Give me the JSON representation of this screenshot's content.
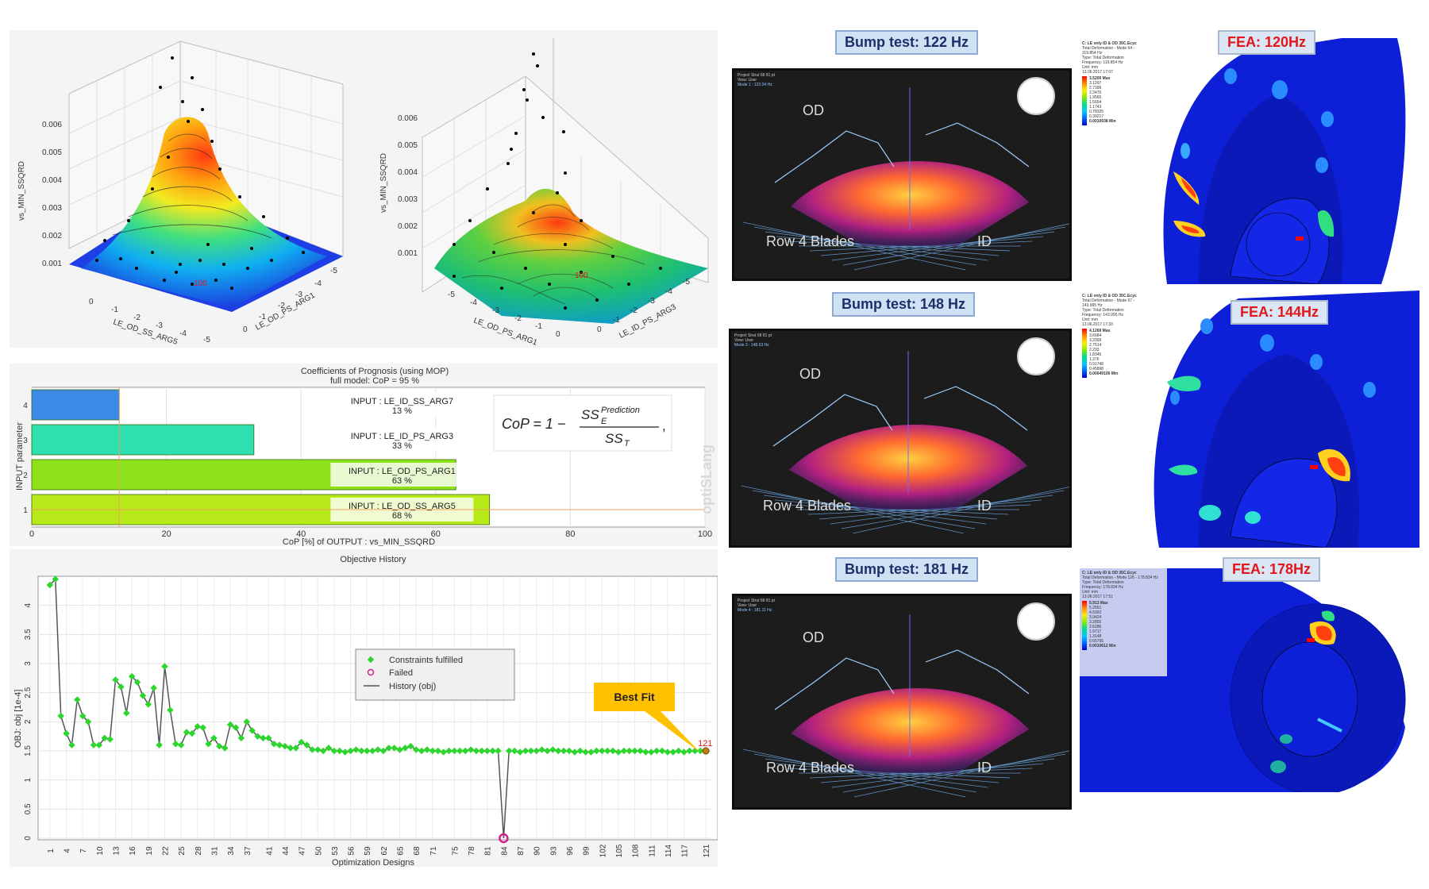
{
  "surface_plots": {
    "left": {
      "zlabel": "vs_MIN_SSQRD",
      "xlabel": "LE_OD_SS_ARG5",
      "ylabel": "LE_OD_PS_ARG1",
      "zticks": [
        "0.006",
        "0.005",
        "0.004",
        "0.003",
        "0.002",
        "0.001"
      ],
      "xticks": [
        "0",
        "-1",
        "-2",
        "-3",
        "-4",
        "-5"
      ],
      "yticks": [
        "0",
        "-1",
        "-2",
        "-3",
        "-4",
        "-5"
      ],
      "marker": "100"
    },
    "right": {
      "zlabel": "vs_MIN_SSQRD",
      "xlabel": "LE_OD_PS_ARG1",
      "ylabel": "LE_ID_PS_ARG3",
      "zticks": [
        "0.006",
        "0.005",
        "0.004",
        "0.003",
        "0.002",
        "0.001"
      ],
      "xticks": [
        "-5",
        "-4",
        "-3",
        "-2",
        "-1",
        "0"
      ],
      "yticks": [
        "0",
        "-1",
        "-2",
        "-3",
        "-4",
        "-5"
      ],
      "marker": "100"
    }
  },
  "cop_chart": {
    "title": "Coefficients of Prognosis (using MOP)",
    "subtitle": "full model: CoP = 95 %",
    "ylabel": "INPUT parameter",
    "xlabel": "CoP [%] of OUTPUT : vs_MIN_SSQRD",
    "watermark": "optiSLang",
    "formula": {
      "lhs": "CoP = 1 −",
      "num": "SS",
      "num_sub": "E",
      "num_sup": "Prediction",
      "den": "SS",
      "den_sub": "T",
      "tail": ","
    }
  },
  "history_chart": {
    "title": "Objective History",
    "ylabel": "OBJ: obj [1e-4]",
    "xlabel": "Optimization Designs",
    "legend": {
      "fulfilled": "Constraints fulfilled",
      "failed": "Failed",
      "history": "History (obj)"
    },
    "callout": "Best Fit",
    "best_label": "121",
    "colors": {
      "fulfilled": "#2dd62d",
      "failed": "#d41f8f",
      "line": "#555555",
      "callout": "#ffc000"
    }
  },
  "chart_data": [
    {
      "type": "bar",
      "title": "Coefficients of Prognosis (using MOP)",
      "subtitle": "full model: CoP = 95 %",
      "xlabel": "CoP [%] of OUTPUT : vs_MIN_SSQRD",
      "ylabel": "INPUT parameter",
      "orientation": "horizontal",
      "xlim": [
        0,
        100
      ],
      "xticks": [
        0,
        20,
        40,
        60,
        80,
        100
      ],
      "categories": [
        "4",
        "3",
        "2",
        "1"
      ],
      "labels": [
        "INPUT : LE_ID_SS_ARG7",
        "INPUT : LE_ID_PS_ARG3",
        "INPUT : LE_OD_PS_ARG1",
        "INPUT : LE_OD_SS_ARG5"
      ],
      "values": [
        13,
        33,
        63,
        68
      ],
      "value_labels": [
        "13 %",
        "33 %",
        "63 %",
        "68 %"
      ],
      "colors": [
        "#3a8ae6",
        "#2ee0b0",
        "#8ee21a",
        "#b8ea1a"
      ]
    },
    {
      "type": "scatter",
      "title": "Objective History",
      "xlabel": "Optimization Designs",
      "ylabel": "OBJ: obj [1e-4]",
      "xlim": [
        0,
        122
      ],
      "ylim": [
        0,
        4.5
      ],
      "xticks": [
        1,
        4,
        7,
        10,
        13,
        16,
        19,
        22,
        25,
        28,
        31,
        34,
        37,
        41,
        44,
        47,
        50,
        53,
        56,
        59,
        62,
        65,
        68,
        71,
        75,
        78,
        81,
        84,
        87,
        90,
        93,
        96,
        99,
        102,
        105,
        108,
        111,
        114,
        117,
        121
      ],
      "yticks": [
        0,
        0.5,
        1,
        1.5,
        2,
        2.5,
        3,
        3.5,
        4
      ],
      "legend": "top-center",
      "grid": true,
      "series": [
        {
          "name": "History (obj)",
          "x": [
            1,
            2,
            3,
            4,
            5,
            6,
            7,
            8,
            9,
            10,
            11,
            12,
            13,
            14,
            15,
            16,
            17,
            18,
            19,
            20,
            21,
            22,
            23,
            24,
            25,
            26,
            27,
            28,
            29,
            30,
            31,
            32,
            33,
            34,
            35,
            36,
            37,
            38,
            39,
            40,
            41,
            42,
            43,
            44,
            45,
            46,
            47,
            48,
            49,
            50,
            51,
            52,
            53,
            54,
            55,
            56,
            57,
            58,
            59,
            60,
            61,
            62,
            63,
            64,
            65,
            66,
            67,
            68,
            69,
            70,
            71,
            72,
            73,
            74,
            75,
            76,
            77,
            78,
            79,
            80,
            81,
            82,
            83,
            84,
            85,
            86,
            87,
            88,
            89,
            90,
            91,
            92,
            93,
            94,
            95,
            96,
            97,
            98,
            99,
            100,
            101,
            102,
            103,
            104,
            105,
            106,
            107,
            108,
            109,
            110,
            111,
            112,
            113,
            114,
            115,
            116,
            117,
            118,
            119,
            120,
            121
          ],
          "y": [
            4.35,
            4.45,
            2.1,
            1.8,
            1.6,
            2.38,
            2.1,
            2.0,
            1.6,
            1.6,
            1.72,
            1.7,
            2.72,
            2.6,
            2.15,
            2.78,
            2.68,
            2.45,
            2.3,
            2.58,
            1.6,
            2.95,
            2.2,
            1.62,
            1.6,
            1.82,
            1.8,
            1.92,
            1.9,
            1.62,
            1.72,
            1.58,
            1.55,
            1.95,
            1.9,
            1.72,
            2.0,
            1.85,
            1.75,
            1.72,
            1.72,
            1.62,
            1.6,
            1.58,
            1.55,
            1.55,
            1.65,
            1.6,
            1.52,
            1.52,
            1.5,
            1.55,
            1.5,
            1.5,
            1.48,
            1.5,
            1.52,
            1.5,
            1.5,
            1.5,
            1.52,
            1.5,
            1.55,
            1.55,
            1.52,
            1.55,
            1.58,
            1.52,
            1.5,
            1.52,
            1.5,
            1.5,
            1.48,
            1.5,
            1.5,
            1.5,
            1.5,
            1.52,
            1.5,
            1.5,
            1.5,
            1.5,
            1.5,
            0.0,
            1.5,
            1.5,
            1.48,
            1.5,
            1.5,
            1.5,
            1.52,
            1.5,
            1.52,
            1.5,
            1.5,
            1.5,
            1.48,
            1.5,
            1.48,
            1.48,
            1.5,
            1.5,
            1.5,
            1.5,
            1.48,
            1.5,
            1.5,
            1.5,
            1.5,
            1.48,
            1.48,
            1.5,
            1.5,
            1.48,
            1.48,
            1.5,
            1.48,
            1.5,
            1.5,
            1.5,
            1.5
          ]
        },
        {
          "name": "Failed",
          "x": [
            84
          ],
          "y": [
            0.0
          ]
        }
      ]
    }
  ],
  "bump_tests": [
    {
      "label": "Bump test: 122 Hz",
      "header": "Project Strut 68 81 pt",
      "view": "View: User",
      "mode": "Mode 1 : 122.04 Hz",
      "od": "OD",
      "row": "Row 4 Blades",
      "id": "ID"
    },
    {
      "label": "Bump test: 148 Hz",
      "header": "Project Strut 68 81 pt",
      "view": "View: User",
      "mode": "Mode 3 : 148.63 Hz",
      "od": "OD",
      "row": "Row 4 Blades",
      "id": "ID"
    },
    {
      "label": "Bump test: 181 Hz",
      "header": "Project Strut 68 81 pt",
      "view": "View: User",
      "mode": "Mode 4 : 181.11 Hz",
      "od": "OD",
      "row": "Row 4 Blades",
      "id": "ID"
    }
  ],
  "fea_results": [
    {
      "label": "FEA: 120Hz",
      "legend_title": "C: LE only ID & OD 35C.Ecyc",
      "legend_lines": [
        "Total Deformation - Mode 64 - 119.854 Hz",
        "Type: Total Deformation",
        "Frequency: 119.854 Hz",
        "Unit: mm",
        "13.06.2017 17:07"
      ],
      "max": "3.5200 Max",
      "min": "0.0010938 Min",
      "steps": [
        "3.1297",
        "2.7396",
        "2.3476",
        "1.9565",
        "1.5654",
        "1.1743",
        "0.78325",
        "0.39217"
      ]
    },
    {
      "label": "FEA: 144Hz",
      "legend_title": "C: LE only ID & OD 35C.Ecyc",
      "legend_lines": [
        "Total Deformation - Mode 67 - 143.995 Hz",
        "Type: Total Deformation",
        "Frequency: 143.995 Hz",
        "Unit: mm",
        "13.06.2017 17:33"
      ],
      "max": "4.1269 Max",
      "min": "0.00049106 Min",
      "steps": [
        "3.6684",
        "3.2099",
        "2.7514",
        "2.293",
        "1.8345",
        "1.376",
        "0.91748",
        "0.45898"
      ]
    },
    {
      "label": "FEA: 178Hz",
      "legend_title": "C: LE only ID & OD 35C.Ecyc",
      "legend_lines": [
        "Total Deformation - Mode 126 - 178.834 Hz",
        "Type: Total Deformation",
        "Frequency: 178.834 Hz",
        "Unit: mm",
        "13.06.2017 17:51"
      ],
      "max": "5.913 Max",
      "min": "0.0010612 Min",
      "steps": [
        "5.2561",
        "4.5992",
        "3.9424",
        "3.2855",
        "2.6286",
        "1.9717",
        "1.3148",
        "0.65795"
      ]
    }
  ]
}
